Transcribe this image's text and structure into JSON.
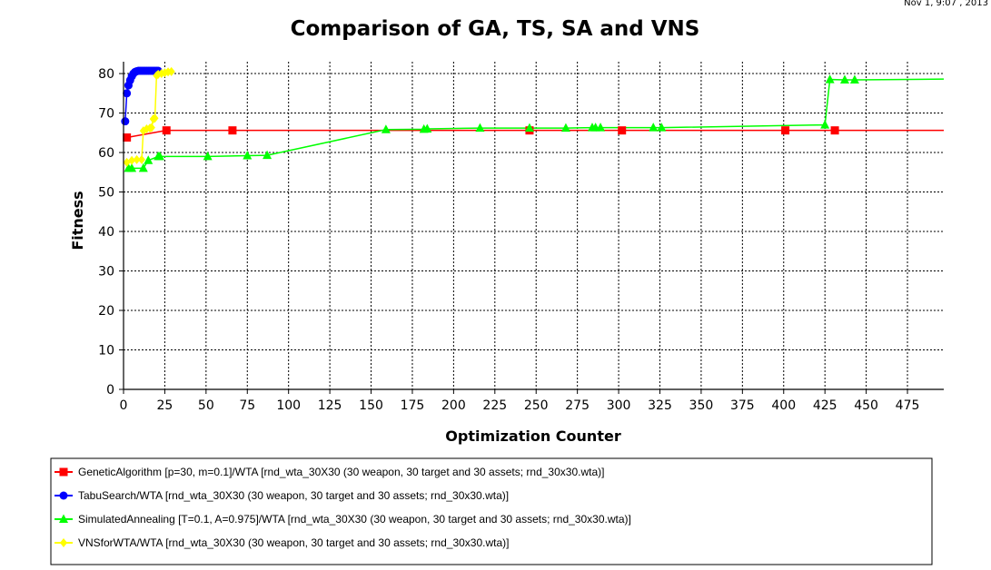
{
  "corner_text": "Nov 1, 9:07 , 2013",
  "chart_data": {
    "type": "line",
    "title": "Comparison of GA, TS, SA and VNS",
    "xlabel": "Optimization Counter",
    "ylabel": "Fitness",
    "xlim": [
      0,
      497
    ],
    "ylim": [
      0,
      83
    ],
    "x_ticks": [
      0,
      25,
      50,
      75,
      100,
      125,
      150,
      175,
      200,
      225,
      250,
      275,
      300,
      325,
      350,
      375,
      400,
      425,
      450,
      475
    ],
    "y_ticks": [
      0,
      10,
      20,
      30,
      40,
      50,
      60,
      70,
      80
    ],
    "grid": true,
    "legend_position": "bottom",
    "series": [
      {
        "name": "GeneticAlgorithm [p=30, m=0.1]/WTA [rnd_wta_30X30 (30 weapon, 30 target and 30 assets; rnd_30x30.wta)]",
        "color": "#ff0000",
        "marker": "square",
        "x": [
          2,
          26,
          66,
          246,
          302,
          401,
          431,
          497
        ],
        "y": [
          63.8,
          65.6,
          65.6,
          65.6,
          65.6,
          65.6,
          65.6,
          65.6
        ],
        "marker_count": 7
      },
      {
        "name": "TabuSearch/WTA [rnd_wta_30X30 (30 weapon, 30 target and 30 assets; rnd_30x30.wta)]",
        "color": "#0000ff",
        "marker": "circle",
        "x": [
          1,
          2,
          3,
          4,
          5,
          6,
          7,
          8,
          9,
          10,
          11,
          12,
          13,
          14,
          15,
          16,
          17,
          18,
          19,
          20,
          21
        ],
        "y": [
          67.9,
          75,
          77,
          78.3,
          79.3,
          80,
          80.4,
          80.6,
          80.7,
          80.7,
          80.7,
          80.7,
          80.7,
          80.7,
          80.7,
          80.7,
          80.7,
          80.7,
          80.7,
          80.7,
          80.7
        ],
        "marker_count": 21
      },
      {
        "name": "SimulatedAnnealing [T=0.1, A=0.975]/WTA [rnd_wta_30X30 (30 weapon, 30 target and 30 assets; rnd_30x30.wta)]",
        "color": "#00ff00",
        "marker": "triangle",
        "x": [
          3,
          5,
          12,
          15,
          21,
          22,
          51,
          75,
          87,
          159,
          182,
          184,
          216,
          246,
          268,
          284,
          286,
          289,
          321,
          326,
          425,
          428,
          437,
          443,
          497
        ],
        "y": [
          56,
          56,
          56,
          58,
          59,
          59,
          59,
          59.2,
          59.3,
          65.8,
          65.9,
          66,
          66.2,
          66.2,
          66.2,
          66.3,
          66.3,
          66.3,
          66.3,
          66.3,
          67,
          78.5,
          78.4,
          78.4,
          78.6
        ],
        "marker_count": 24
      },
      {
        "name": "VNSforWTA/WTA [rnd_wta_30X30 (30 weapon, 30 target and 30 assets; rnd_30x30.wta)]",
        "color": "#ffff00",
        "marker": "diamond",
        "x": [
          2,
          5,
          8,
          11,
          12,
          14,
          16,
          17,
          18,
          19,
          20,
          21,
          23,
          25,
          27,
          29
        ],
        "y": [
          57.5,
          58,
          58.2,
          58.2,
          65.5,
          66,
          66.2,
          66.3,
          68.5,
          68.7,
          79.5,
          79.8,
          80,
          80.2,
          80.4,
          80.5
        ],
        "marker_count": 16
      }
    ]
  }
}
